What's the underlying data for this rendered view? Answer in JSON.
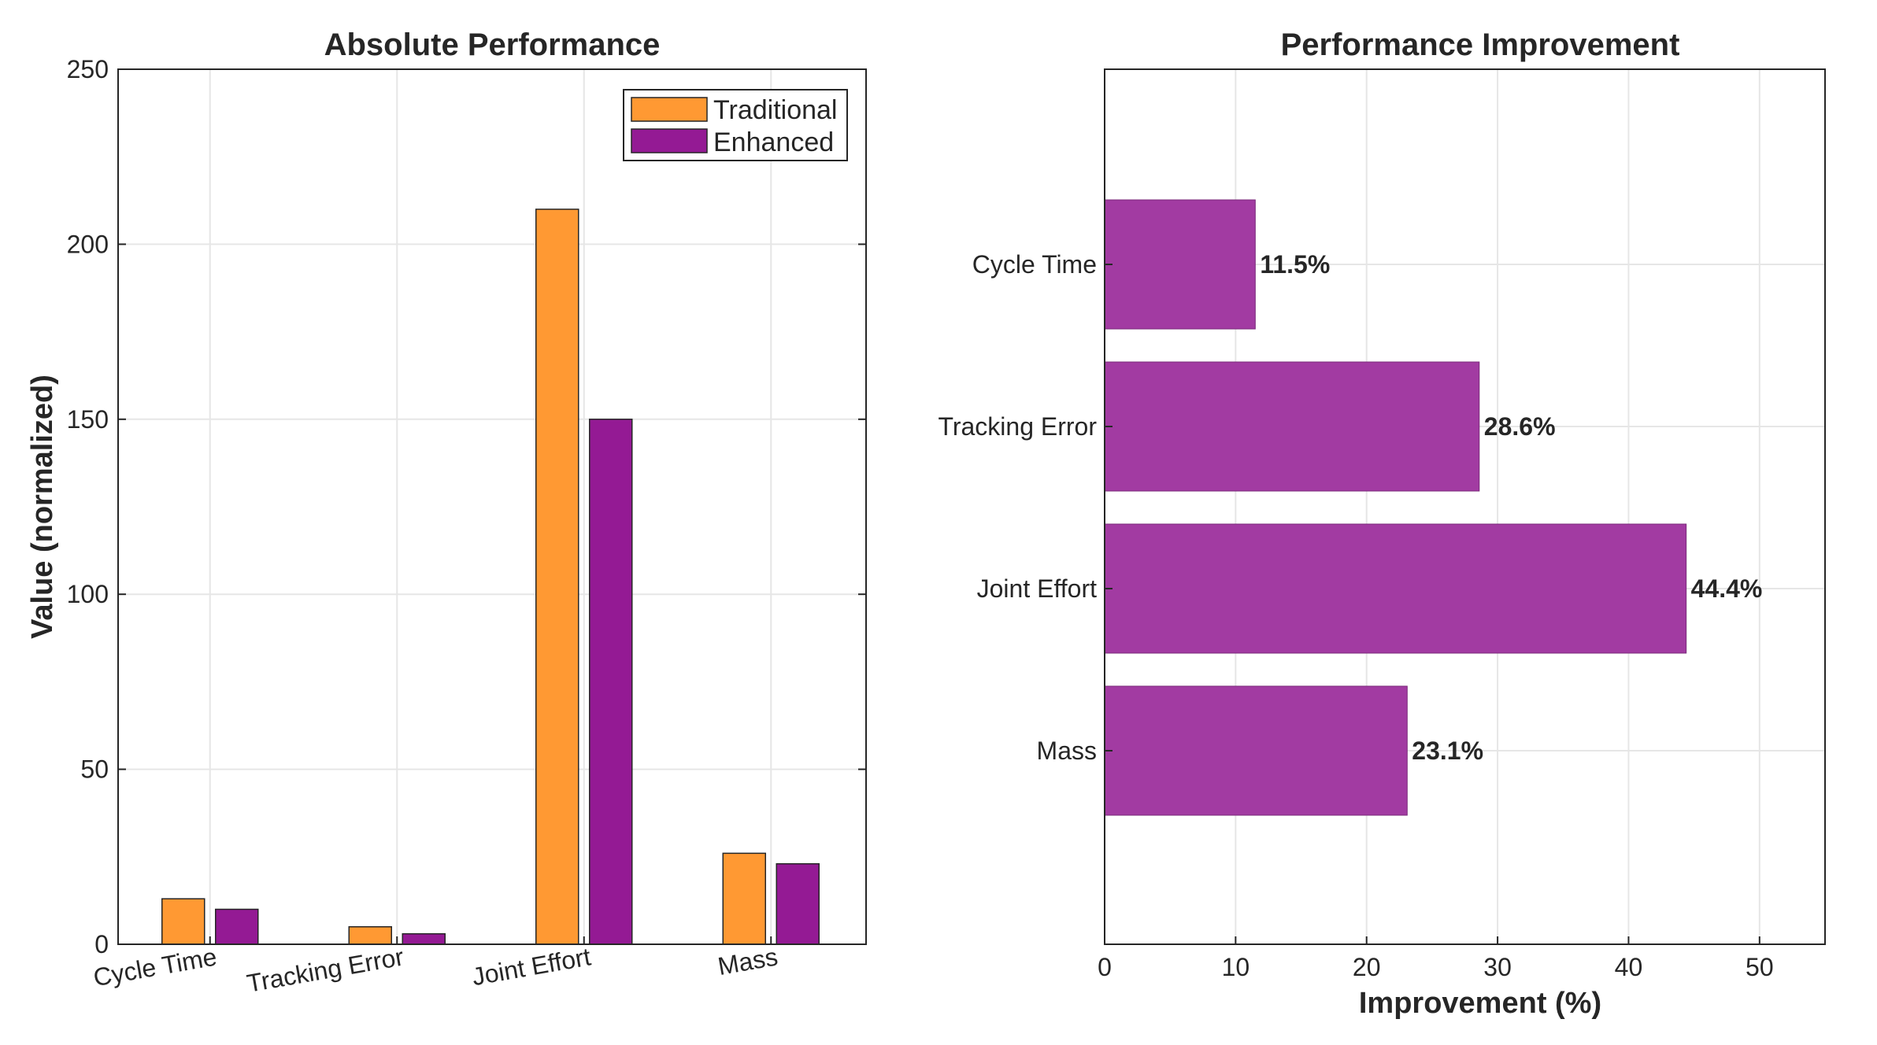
{
  "chart_data": [
    {
      "type": "bar",
      "title": "Absolute Performance",
      "xlabel": "",
      "ylabel": "Value (normalized)",
      "categories": [
        "Cycle Time",
        "Tracking Error",
        "Joint Effort",
        "Mass"
      ],
      "series": [
        {
          "name": "Traditional",
          "color": "#FF9933",
          "values": [
            13,
            5,
            210,
            26
          ]
        },
        {
          "name": "Enhanced",
          "color": "#941A94",
          "values": [
            10,
            3,
            150,
            23
          ]
        }
      ],
      "ylim": [
        0,
        250
      ],
      "yticks": [
        0,
        50,
        100,
        150,
        200,
        250
      ],
      "grid": true,
      "legend_position": "top-right"
    },
    {
      "type": "bar",
      "orientation": "horizontal",
      "title": "Performance Improvement",
      "xlabel": "Improvement (%)",
      "ylabel": "",
      "categories": [
        "Cycle Time",
        "Tracking Error",
        "Joint Effort",
        "Mass"
      ],
      "values": [
        11.5,
        28.6,
        44.4,
        23.1
      ],
      "value_labels": [
        "11.5%",
        "28.6%",
        "44.4%",
        "23.1%"
      ],
      "color": "#A23BA2",
      "xlim": [
        0,
        55
      ],
      "xticks": [
        0,
        10,
        20,
        30,
        40,
        50
      ],
      "grid": true
    }
  ]
}
